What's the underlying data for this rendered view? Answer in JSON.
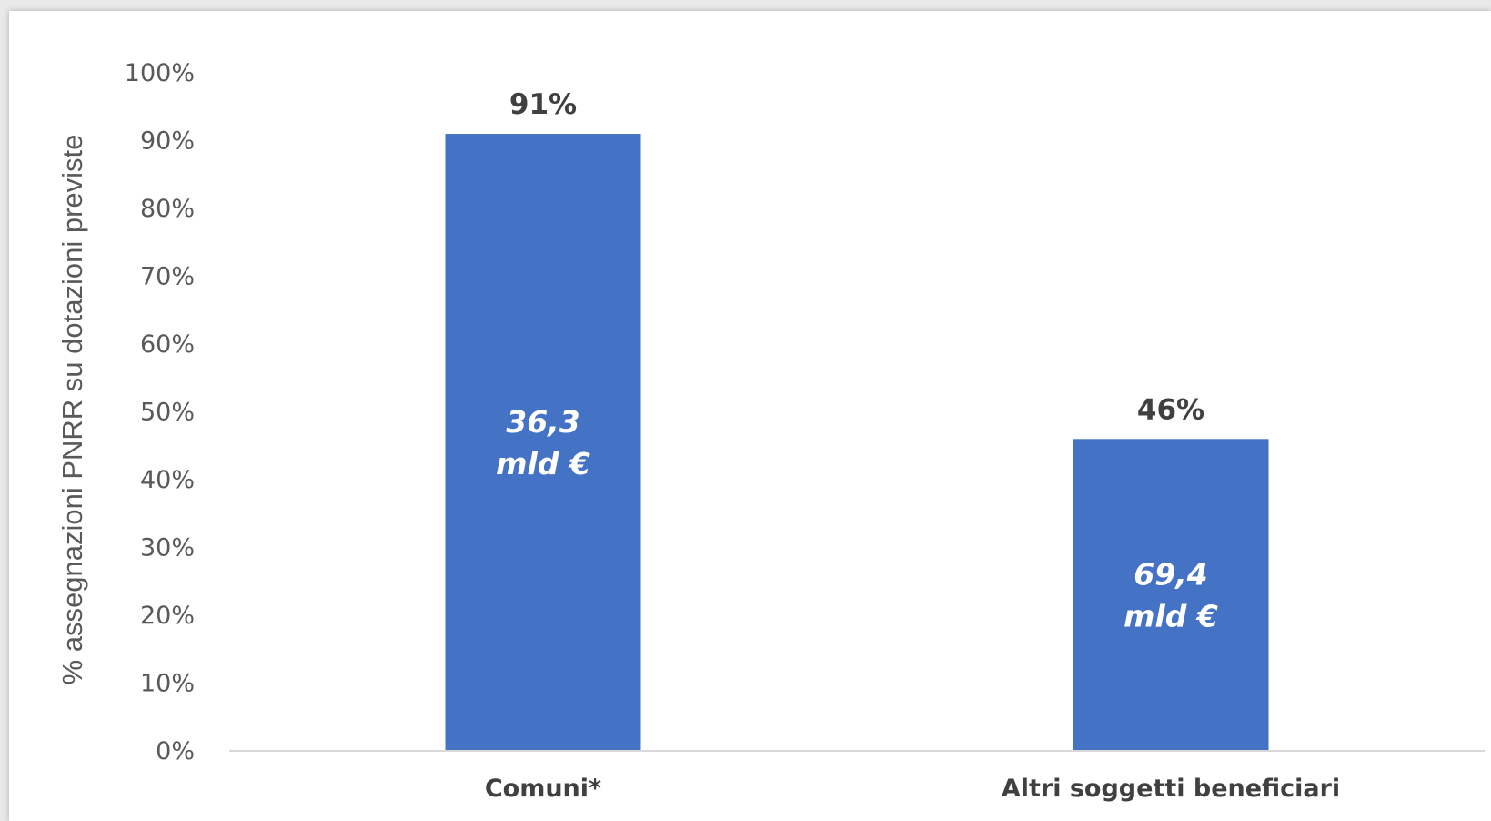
{
  "chart_data": {
    "type": "bar",
    "categories": [
      "Comuni*",
      "Altri soggetti beneficiari"
    ],
    "values": [
      91,
      46
    ],
    "data_labels": [
      "91%",
      "46%"
    ],
    "inner_labels": [
      [
        "36,3",
        "mld €"
      ],
      [
        "69,4",
        "mld €"
      ]
    ],
    "title": "",
    "xlabel": "",
    "ylabel": "% assegnazioni PNRR su dotazioni previste",
    "ylim": [
      0,
      100
    ],
    "yticks": [
      "0%",
      "10%",
      "20%",
      "30%",
      "40%",
      "50%",
      "60%",
      "70%",
      "80%",
      "90%",
      "100%"
    ],
    "grid": false,
    "legend": "none",
    "colors": {
      "bar": "#4472c4",
      "axis": "#d9d9d9",
      "text": "#595959"
    }
  }
}
